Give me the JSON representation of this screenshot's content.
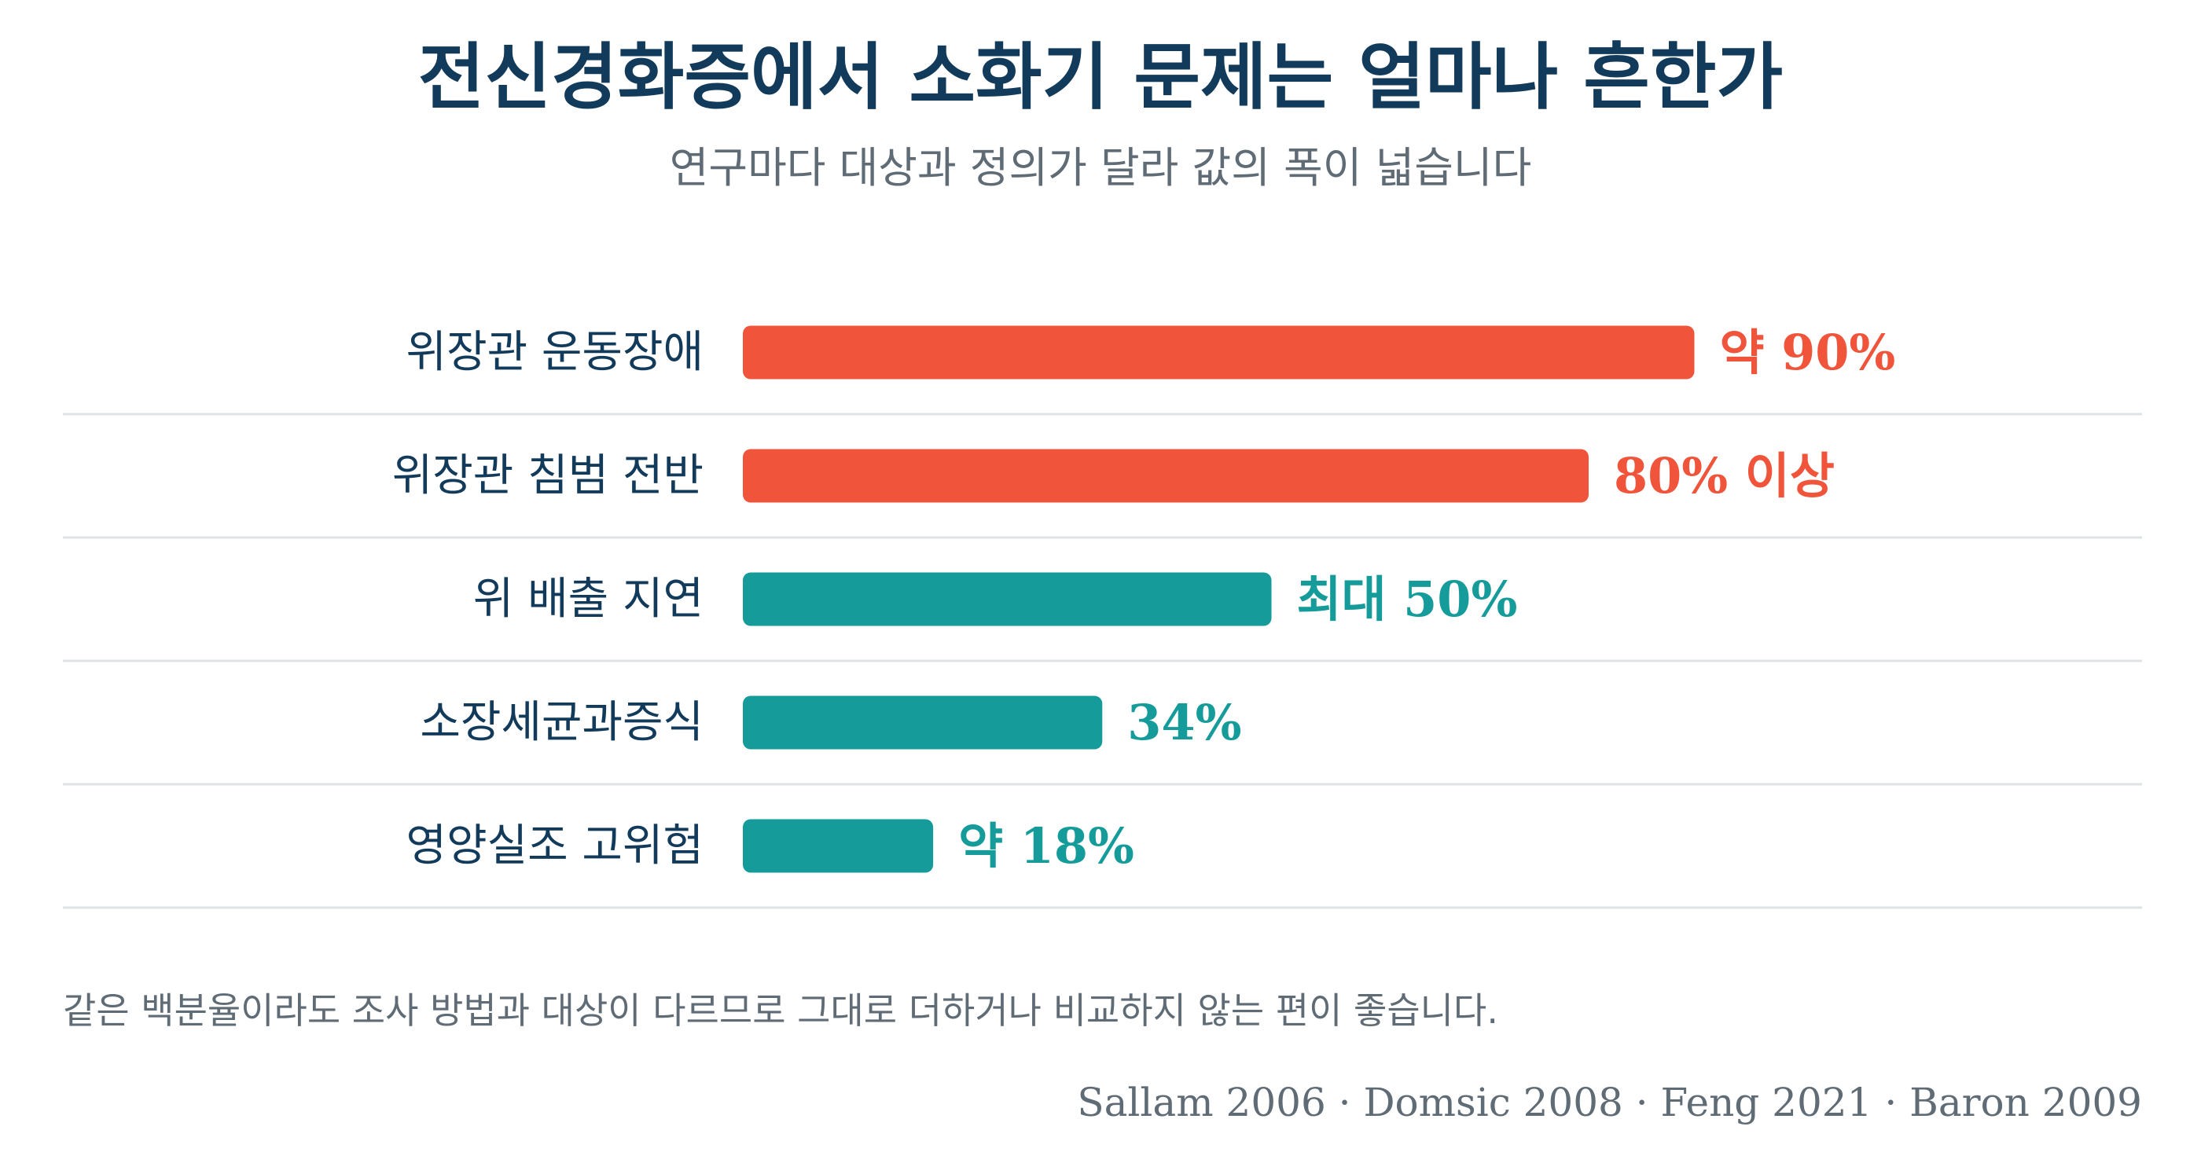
{
  "header": {
    "title": "전신경화증에서 소화기 문제는 얼마나 흔한가",
    "subtitle": "연구마다 대상과 정의가 달라 값의 폭이 넓습니다"
  },
  "footer": {
    "note": "같은 백분율이라도 조사 방법과 대상이 다르므로 그대로 더하거나 비교하지 않는 편이 좋습니다.",
    "source": "Sallam 2006 · Domsic 2008 · Feng 2021 · Baron 2009"
  },
  "colors": {
    "title": "#123a5a",
    "subtitle": "#5f6b75",
    "category": "#123a5a",
    "high": "#f0553c",
    "low": "#169b9b",
    "divider": "#dde3e6",
    "footnote": "#5f6b75"
  },
  "chart_data": {
    "type": "bar",
    "orientation": "horizontal",
    "categories": [
      "위장관 운동장애",
      "위장관 침범 전반",
      "위 배출 지연",
      "소장세균과증식",
      "영양실조 고위험"
    ],
    "values": [
      90,
      80,
      50,
      34,
      18
    ],
    "value_labels": [
      "약 90%",
      "80% 이상",
      "최대 50%",
      "34%",
      "약 18%"
    ],
    "bar_colors": [
      "high",
      "high",
      "low",
      "low",
      "low"
    ],
    "xlim": [
      0,
      100
    ],
    "grid": false,
    "legend": "none"
  }
}
